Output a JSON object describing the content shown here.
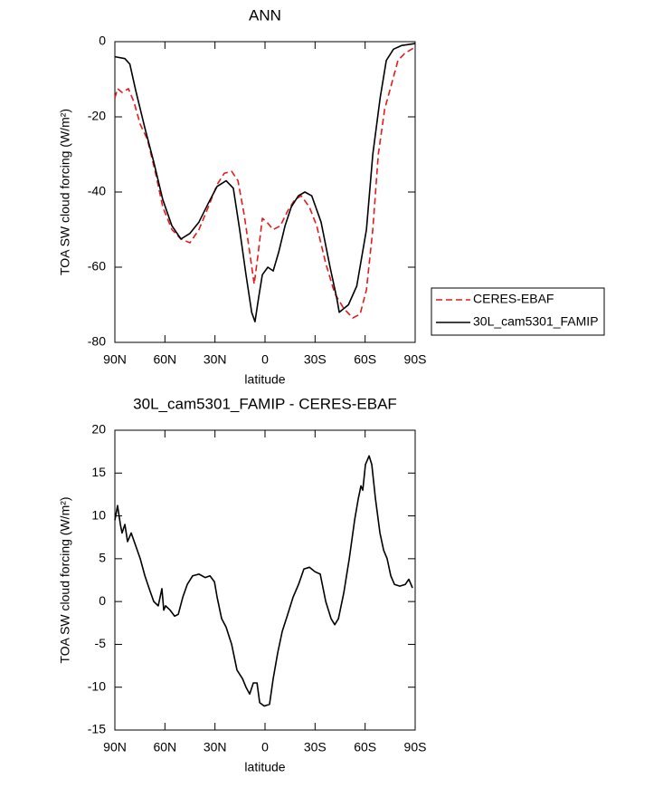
{
  "chart_data": [
    {
      "type": "line",
      "title": "ANN",
      "xlabel": "latitude",
      "ylabel": "TOA SW cloud forcing (W/m²)",
      "xlim": [
        90,
        -90
      ],
      "xticks": [
        {
          "value": 90,
          "label": "90N"
        },
        {
          "value": 60,
          "label": "60N"
        },
        {
          "value": 30,
          "label": "30N"
        },
        0,
        {
          "value": -30,
          "label": "30S"
        },
        {
          "value": -60,
          "label": "60S"
        },
        {
          "value": -90,
          "label": "90S"
        }
      ],
      "ylim": [
        -80,
        0
      ],
      "yticks": [
        0,
        -20,
        -40,
        -60,
        -80
      ],
      "legend": "outside right",
      "series": [
        {
          "name": "CERES-EBAF",
          "color": "#e41a1c",
          "dash": "dashed",
          "x": [
            90,
            88.4,
            85.7,
            81.9,
            78.6,
            74.8,
            70.5,
            65.6,
            61.3,
            55.8,
            50.4,
            45,
            39.6,
            34,
            28.7,
            24.4,
            20,
            16.2,
            12.5,
            9.2,
            6.5,
            4.3,
            1.6,
            -1.1,
            -4.9,
            -9.2,
            -13.6,
            -17.9,
            -21.7,
            -26.6,
            -31,
            -36.4,
            -41.8,
            -47.2,
            -52.6,
            -57,
            -60.8,
            -64.6,
            -67.9,
            -71.7,
            -75.4,
            -79.7,
            -84,
            -87.9,
            -90
          ],
          "values": [
            -15,
            -12.5,
            -13.5,
            -12.5,
            -16,
            -22,
            -26,
            -35,
            -44,
            -50,
            -52.5,
            -53.5,
            -50,
            -44,
            -38,
            -35,
            -34.5,
            -37,
            -46,
            -56,
            -64.5,
            -57,
            -47,
            -48,
            -50,
            -49,
            -45,
            -42,
            -41,
            -44,
            -49,
            -59,
            -67,
            -71,
            -73.5,
            -72.5,
            -66,
            -50,
            -30,
            -18,
            -12,
            -5,
            -3,
            -2,
            -1.5
          ]
        },
        {
          "name": "30L_cam5301_FAMIP",
          "color": "#000000",
          "dash": "solid",
          "x": [
            90,
            84,
            81,
            77.5,
            72,
            66.7,
            61.3,
            55.8,
            50.4,
            45,
            39.6,
            34,
            28.7,
            23.3,
            19,
            15.2,
            11.4,
            8,
            6,
            3.8,
            1.6,
            -1.7,
            -4.9,
            -8.2,
            -12,
            -15.7,
            -20,
            -23.9,
            -28,
            -33.6,
            -39,
            -42.9,
            -44.5,
            -50,
            -55,
            -60.8,
            -64.6,
            -69,
            -72.7,
            -77,
            -82,
            -90
          ],
          "values": [
            -4,
            -4.5,
            -6,
            -13,
            -23,
            -32,
            -42,
            -49,
            -52.5,
            -51,
            -48,
            -43,
            -38.5,
            -37,
            -39,
            -50,
            -62,
            -72,
            -74.5,
            -68,
            -62,
            -60,
            -61,
            -56,
            -49,
            -44,
            -41,
            -40,
            -41,
            -48,
            -60,
            -68,
            -72,
            -70,
            -65,
            -50,
            -30,
            -15,
            -5,
            -2,
            -1,
            -0.5
          ]
        }
      ]
    },
    {
      "type": "line",
      "title": "30L_cam5301_FAMIP - CERES-EBAF",
      "xlabel": "latitude",
      "ylabel": "TOA SW cloud forcing (W/m²)",
      "xlim": [
        90,
        -90
      ],
      "xticks": [
        {
          "value": 90,
          "label": "90N"
        },
        {
          "value": 60,
          "label": "60N"
        },
        {
          "value": 30,
          "label": "30N"
        },
        0,
        {
          "value": -30,
          "label": "30S"
        },
        {
          "value": -60,
          "label": "60S"
        },
        {
          "value": -90,
          "label": "90S"
        }
      ],
      "ylim": [
        -15,
        20
      ],
      "yticks": [
        20,
        15,
        10,
        5,
        0,
        -5,
        -10,
        -15
      ],
      "series": [
        {
          "color": "#000000",
          "dash": "solid",
          "x": [
            90,
            88.4,
            86.7,
            85.7,
            84,
            82.4,
            80.2,
            77.5,
            74.8,
            72,
            69.4,
            66.7,
            64,
            61.8,
            60.7,
            59.6,
            56.9,
            54.2,
            52,
            49.3,
            46.6,
            43.4,
            39.6,
            35.8,
            33,
            30.3,
            28.7,
            26,
            23.3,
            20,
            16.8,
            13.5,
            11.4,
            9.2,
            7,
            4.8,
            3.2,
            0.5,
            -2.7,
            -4.9,
            -7.6,
            -10.3,
            -13.6,
            -16.8,
            -20.1,
            -23.3,
            -26.6,
            -29.8,
            -33.1,
            -36.4,
            -39.6,
            -41.8,
            -44,
            -47.2,
            -50.5,
            -53.7,
            -55.9,
            -57.5,
            -58.6,
            -60.2,
            -62.4,
            -64,
            -66.2,
            -68.9,
            -71.1,
            -73.2,
            -75.4,
            -77.6,
            -80.8,
            -84.1,
            -86.2,
            -88.4
          ],
          "values": [
            9.5,
            11.2,
            9,
            8,
            9,
            7,
            8,
            6.5,
            5,
            3,
            1.5,
            0,
            -0.5,
            1.5,
            -1,
            -0.5,
            -1,
            -1.7,
            -1.5,
            0.5,
            2,
            3,
            3.2,
            2.8,
            3,
            2.3,
            0.5,
            -2,
            -3,
            -5,
            -8,
            -9,
            -10,
            -10.8,
            -9.5,
            -9.5,
            -11.8,
            -12.2,
            -12,
            -9,
            -6,
            -3.5,
            -1.5,
            0.5,
            2,
            3.8,
            4,
            3.5,
            3.2,
            0,
            -2,
            -2.7,
            -2,
            1,
            5,
            9.5,
            12,
            13.5,
            13,
            16,
            17,
            16,
            12,
            8,
            6,
            5,
            3,
            2,
            1.8,
            2,
            2.6,
            1.6
          ]
        }
      ]
    }
  ]
}
